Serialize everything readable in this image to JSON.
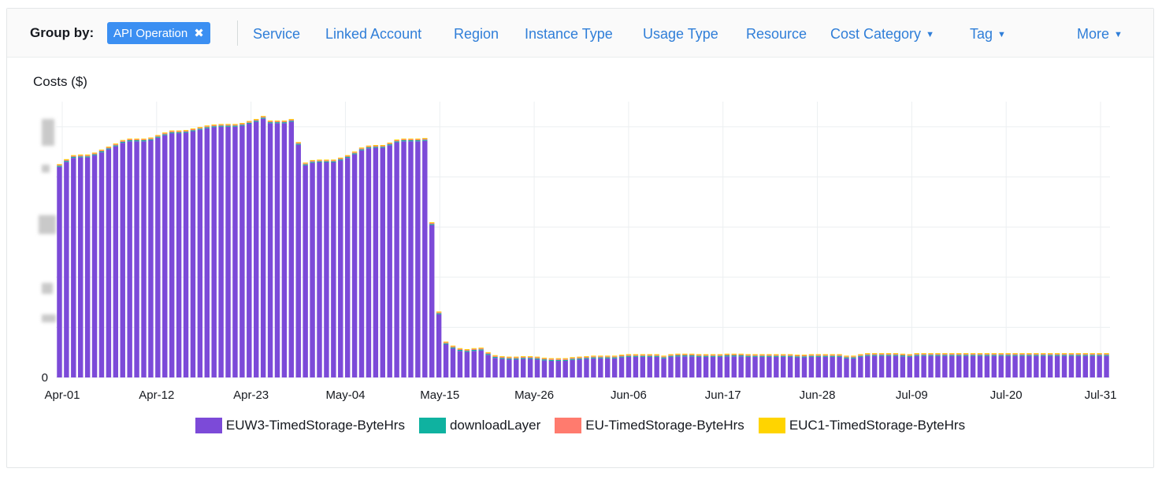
{
  "toolbar": {
    "group_by_label": "Group by:",
    "active_chip": "API Operation",
    "chip_remove": "✖",
    "links": [
      "Service",
      "Linked Account",
      "Region",
      "Instance Type",
      "Usage Type",
      "Resource"
    ],
    "dropdowns": [
      "Cost Category",
      "Tag",
      "More"
    ]
  },
  "colors": {
    "primary_series": "#7c4ad8",
    "teal": "#0fb2a0",
    "salmon": "#ff7b6e",
    "yellow": "#ffd400",
    "grid": "#eceff1"
  },
  "chart_data": {
    "type": "bar",
    "stacked": true,
    "title": "Costs ($)",
    "ylabel": "Costs ($)",
    "y_tick_labels": [
      "0"
    ],
    "x_tick_labels": [
      "Apr-01",
      "Apr-12",
      "Apr-23",
      "May-04",
      "May-15",
      "May-26",
      "Jun-06",
      "Jun-17",
      "Jun-28",
      "Jul-09",
      "Jul-20",
      "Jul-31"
    ],
    "x_range": [
      "Apr-01",
      "Jul-31"
    ],
    "grid": true,
    "legend_position": "bottom",
    "series_names": [
      "EUW3-TimedStorage-ByteHrs",
      "downloadLayer",
      "EU-TimedStorage-ByteHrs",
      "EUC1-TimedStorage-ByteHrs"
    ],
    "series_colors": [
      "#7c4ad8",
      "#0fb2a0",
      "#ff7b6e",
      "#ffd400"
    ],
    "primary_series_values_relative": [
      84.0,
      86.0,
      87.6,
      87.8,
      87.8,
      88.6,
      89.8,
      91.0,
      92.2,
      93.6,
      94.2,
      94.2,
      94.2,
      94.6,
      95.6,
      96.6,
      97.4,
      97.4,
      97.6,
      98.2,
      98.8,
      99.4,
      99.8,
      100.0,
      100.0,
      100.0,
      100.4,
      101.2,
      102.0,
      103.2,
      101.4,
      101.4,
      101.4,
      102.0,
      92.8,
      84.6,
      85.6,
      85.8,
      85.8,
      85.8,
      86.6,
      87.6,
      89.0,
      90.6,
      91.4,
      91.6,
      91.6,
      92.6,
      93.8,
      94.2,
      94.2,
      94.2,
      94.4,
      60.8,
      25.2,
      13.2,
      11.6,
      10.6,
      10.2,
      10.6,
      10.8,
      9.0,
      7.8,
      7.4,
      7.2,
      7.2,
      7.4,
      7.4,
      7.2,
      6.8,
      6.6,
      6.6,
      6.6,
      7.0,
      7.2,
      7.4,
      7.6,
      7.6,
      7.6,
      7.6,
      8.0,
      8.2,
      8.2,
      8.2,
      8.2,
      8.2,
      7.6,
      8.2,
      8.4,
      8.4,
      8.4,
      8.2,
      8.2,
      8.2,
      8.2,
      8.4,
      8.4,
      8.4,
      8.2,
      8.2,
      8.2,
      8.2,
      8.2,
      8.2,
      8.2,
      8.0,
      8.0,
      8.2,
      8.2,
      8.2,
      8.2,
      8.2,
      7.6,
      7.6,
      8.2,
      8.6,
      8.6,
      8.6,
      8.6,
      8.6,
      8.4,
      8.2,
      8.6,
      8.6,
      8.6,
      8.6,
      8.6,
      8.6,
      8.6,
      8.6,
      8.6,
      8.6,
      8.6,
      8.6,
      8.6,
      8.6,
      8.6,
      8.6,
      8.6,
      8.6,
      8.6,
      8.6,
      8.6,
      8.6,
      8.6,
      8.6,
      8.6,
      8.6,
      8.6,
      8.6
    ],
    "minor_series_note_values_relative": [
      0.4,
      0.4,
      0.3
    ]
  }
}
